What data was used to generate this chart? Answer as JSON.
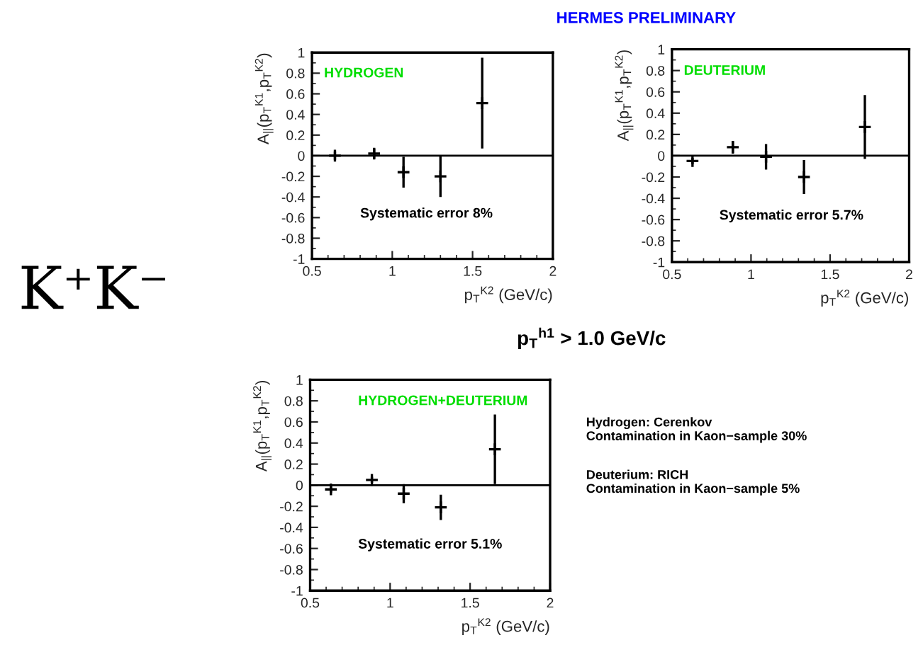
{
  "chart_data": [
    {
      "type": "scatter",
      "title": "HERMES PRELIMINARY",
      "xlabel": "p$_{T}$$^{K2}$ (GeV/c)",
      "ylabel": "A$_{||}$(p$_{T}$$^{K1}$,p$_{T}$$^{K2}$)",
      "x": [
        0.643,
        0.887,
        1.07,
        1.3,
        1.56
      ],
      "series": [
        {
          "color": "#000000",
          "values": [
            0.0,
            0.02,
            -0.16,
            -0.2,
            0.51
          ],
          "errors": [
            0.04,
            0.05,
            0.15,
            0.2,
            0.44
          ]
        }
      ],
      "xlim": [
        0.5,
        2
      ],
      "xticks": [
        0.5,
        1,
        1.5,
        2
      ],
      "ylim": [
        -1,
        1
      ],
      "yticks": [
        -1,
        -0.8,
        -0.6,
        -0.4,
        -0.2,
        0,
        0.2,
        0.4,
        0.6,
        0.8,
        1
      ],
      "ref_lines": [
        {
          "axis": "y",
          "value": 0,
          "color": "#000000"
        }
      ],
      "marker": "cross",
      "annotations": [
        "HYDROGEN",
        "Systematic error 8%",
        "K⁺K⁻"
      ]
    },
    {
      "type": "scatter",
      "xlabel": "p$_{T}$$^{K2}$ (GeV/c)",
      "ylabel": "A$_{||}$(p$_{T}$$^{K1}$,p$_{T}$$^{K2}$)",
      "x": [
        0.63,
        0.885,
        1.095,
        1.335,
        1.72
      ],
      "series": [
        {
          "color": "#000000",
          "values": [
            -0.05,
            0.08,
            -0.01,
            -0.2,
            0.27
          ],
          "errors": [
            0.03,
            0.06,
            0.12,
            0.16,
            0.3
          ]
        }
      ],
      "xlim": [
        0.5,
        2
      ],
      "xticks": [
        0.5,
        1,
        1.5,
        2
      ],
      "ylim": [
        -1,
        1
      ],
      "yticks": [
        -1,
        -0.8,
        -0.6,
        -0.4,
        -0.2,
        0,
        0.2,
        0.4,
        0.6,
        0.8,
        1
      ],
      "ref_lines": [
        {
          "axis": "y",
          "value": 0,
          "color": "#000000"
        }
      ],
      "marker": "cross",
      "annotations": [
        "DEUTERIUM",
        "Systematic error 5.7%"
      ]
    },
    {
      "type": "scatter",
      "xlabel": "p$_{T}$$^{K2}$ (GeV/c)",
      "ylabel": "A$_{||}$(p$_{T}$$^{K1}$,p$_{T}$$^{K2}$)",
      "x": [
        0.63,
        0.886,
        1.085,
        1.317,
        1.655
      ],
      "series": [
        {
          "color": "#000000",
          "values": [
            -0.04,
            0.05,
            -0.08,
            -0.21,
            0.34
          ],
          "errors": [
            0.03,
            0.03,
            0.09,
            0.12,
            0.33
          ]
        }
      ],
      "xlim": [
        0.5,
        2
      ],
      "xticks": [
        0.5,
        1,
        1.5,
        2
      ],
      "ylim": [
        -1,
        1
      ],
      "yticks": [
        -1,
        -0.8,
        -0.6,
        -0.4,
        -0.2,
        0,
        0.2,
        0.4,
        0.6,
        0.8,
        1
      ],
      "ref_lines": [
        {
          "axis": "y",
          "value": 0,
          "color": "#000000"
        }
      ],
      "marker": "cross",
      "annotations": [
        "HYDROGEN+DEUTERIUM",
        "Systematic error 5.1%",
        "p$_{T}$$^{h1}$ > 1.0 GeV/c",
        "Hydrogen: Cerenkov\nContamination in Kaon−sample 30%",
        "Deuterium: RICH\nContamination in Kaon−sample 5%"
      ]
    }
  ]
}
